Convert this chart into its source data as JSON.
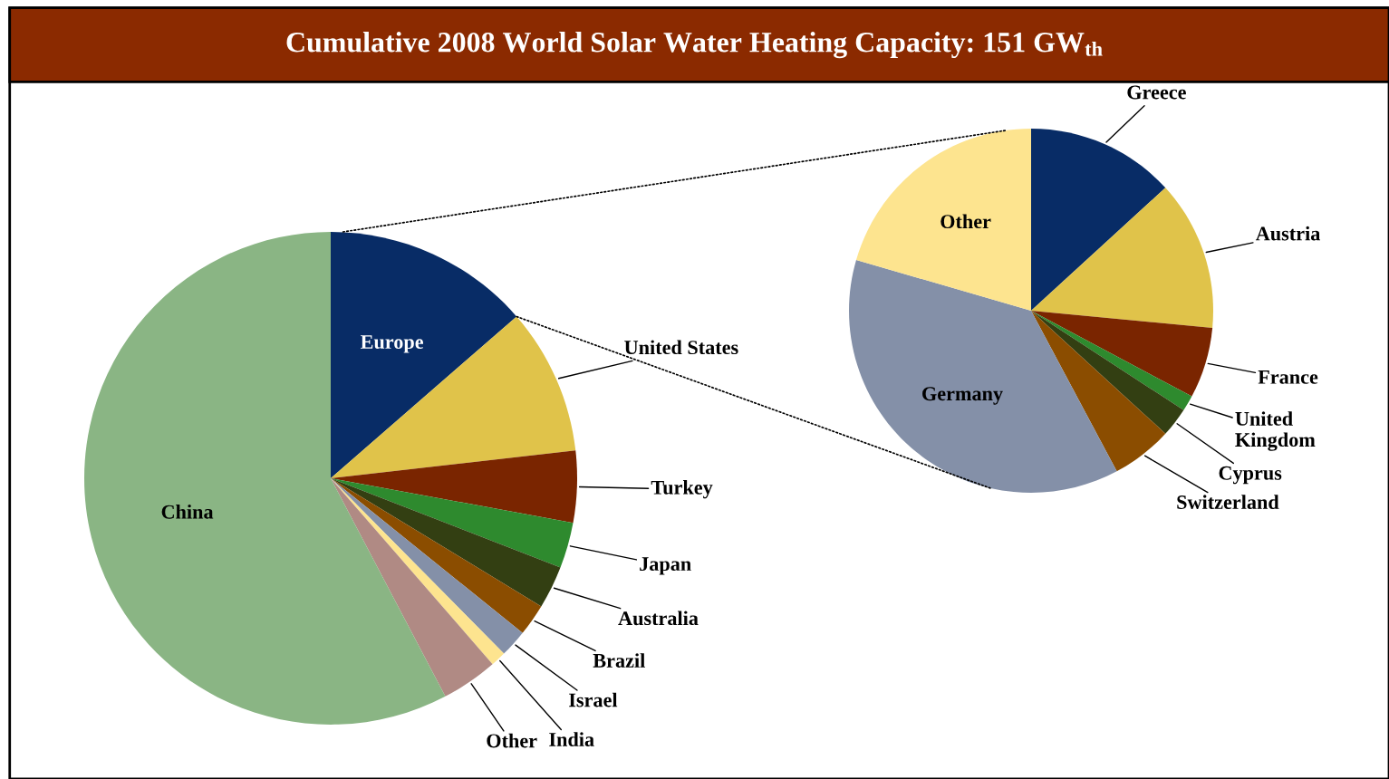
{
  "chart_data": [
    {
      "type": "pie",
      "title": "Cumulative 2008 World Solar Water Heating Capacity: 151 GW$_{th}$",
      "categories": [
        "Europe",
        "United States",
        "Turkey",
        "Japan",
        "Australia",
        "Brazil",
        "Israel",
        "India",
        "Other",
        "China"
      ],
      "values": [
        13.6,
        9.6,
        4.7,
        3.0,
        2.8,
        2.1,
        1.8,
        1.0,
        3.7,
        57.7
      ],
      "colors": [
        "#082c66",
        "#e0c34a",
        "#7a2500",
        "#2e8a2e",
        "#333f12",
        "#8b4d00",
        "#8490a8",
        "#fde48f",
        "#b08a84",
        "#8ab584"
      ]
    },
    {
      "type": "pie",
      "categories": [
        "Greece",
        "Austria",
        "France",
        "United Kingdom",
        "Cyprus",
        "Switzerland",
        "Germany",
        "Other"
      ],
      "values": [
        13.2,
        13.3,
        6.3,
        1.4,
        2.6,
        5.4,
        37.3,
        20.5
      ],
      "colors": [
        "#082c66",
        "#e0c34a",
        "#7a2500",
        "#2e8a2e",
        "#333f12",
        "#8b4d00",
        "#8490a8",
        "#fde48f"
      ]
    }
  ]
}
